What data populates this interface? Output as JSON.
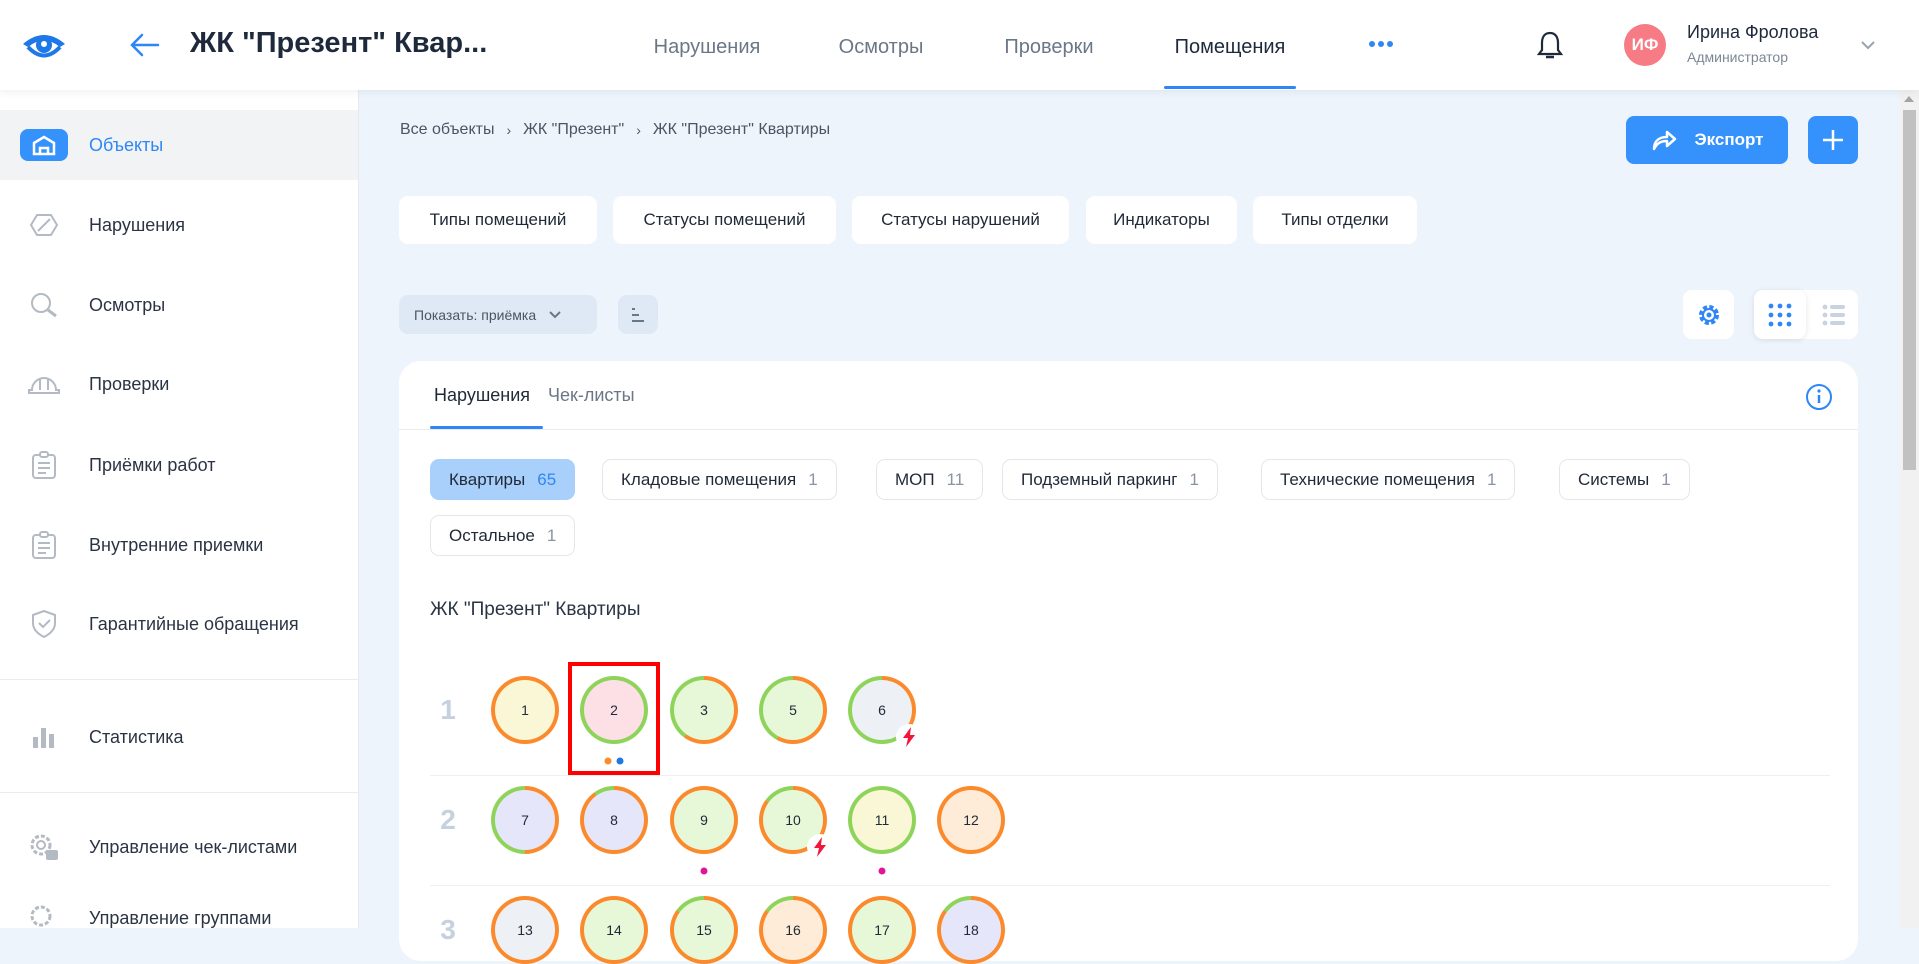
{
  "header": {
    "title": "ЖК \"Презент\" Квар...",
    "nav": [
      {
        "label": "Нарушения"
      },
      {
        "label": "Осмотры"
      },
      {
        "label": "Проверки"
      },
      {
        "label": "Помещения",
        "active": true
      }
    ],
    "more_icon": "more-dots-icon",
    "user": {
      "initials": "ИФ",
      "name": "Ирина Фролова",
      "role": "Администратор"
    }
  },
  "sidebar": {
    "items": [
      {
        "label": "Объекты",
        "icon": "building-icon",
        "active": true
      },
      {
        "label": "Нарушения",
        "icon": "violation-icon"
      },
      {
        "label": "Осмотры",
        "icon": "search-icon"
      },
      {
        "label": "Проверки",
        "icon": "helmet-icon"
      },
      {
        "label": "Приёмки работ",
        "icon": "clipboard-icon"
      },
      {
        "label": "Внутренние приемки",
        "icon": "clipboard-icon"
      },
      {
        "label": "Гарантийные обращения",
        "icon": "shield-check-icon"
      },
      {
        "label": "Статистика",
        "icon": "bar-chart-icon"
      },
      {
        "label": "Управление чек-листами",
        "icon": "gear-check-icon"
      },
      {
        "label": "Управление группами",
        "icon": "gear-group-icon"
      }
    ]
  },
  "breadcrumb": [
    "Все объекты",
    "ЖК \"Презент\"",
    "ЖК \"Презент\" Квартиры"
  ],
  "actions": {
    "export_label": "Экспорт"
  },
  "filters": [
    "Типы помещений",
    "Статусы помещений",
    "Статусы нарушений",
    "Индикаторы",
    "Типы отделки"
  ],
  "show_dropdown": "Показать: приёмка",
  "card": {
    "tabs": [
      {
        "label": "Нарушения",
        "active": true
      },
      {
        "label": "Чек-листы"
      }
    ],
    "categories": [
      {
        "label": "Квартиры",
        "count": "65",
        "active": true
      },
      {
        "label": "Кладовые помещения",
        "count": "1"
      },
      {
        "label": "МОП",
        "count": "11"
      },
      {
        "label": "Подземный паркинг",
        "count": "1"
      },
      {
        "label": "Технические помещения",
        "count": "1"
      },
      {
        "label": "Системы",
        "count": "1"
      },
      {
        "label": "Остальное",
        "count": "1"
      }
    ],
    "section_title": "ЖК \"Презент\" Квартиры",
    "floors": [
      {
        "label": "1",
        "rooms": [
          {
            "n": "1",
            "fill": "#f9f7d6",
            "orange": 1
          },
          {
            "n": "2",
            "fill": "#fde0e6",
            "orange": 0,
            "selected": true,
            "dots": [
              "#fb8a2c",
              "#1f78e8"
            ]
          },
          {
            "n": "3",
            "fill": "#e6f8d8",
            "orange": 0.6
          },
          {
            "n": "5",
            "fill": "#e6f8d8",
            "orange": 0.58
          },
          {
            "n": "6",
            "fill": "#edf1f5",
            "orange": 0.35,
            "bolt": true
          }
        ]
      },
      {
        "label": "2",
        "rooms": [
          {
            "n": "7",
            "fill": "#e6e6fb",
            "orange": 0.5
          },
          {
            "n": "8",
            "fill": "#e6e6fb",
            "orange": 0.9
          },
          {
            "n": "9",
            "fill": "#e6f8d8",
            "orange": 1,
            "dots": [
              "#e0169a"
            ]
          },
          {
            "n": "10",
            "fill": "#e6f8d8",
            "orange": 0.85,
            "bolt": true
          },
          {
            "n": "11",
            "fill": "#f9f7d6",
            "orange": 0,
            "dots": [
              "#e0169a"
            ]
          },
          {
            "n": "12",
            "fill": "#feecd8",
            "orange": 1
          }
        ]
      },
      {
        "label": "3",
        "rooms": [
          {
            "n": "13",
            "fill": "#edf1f5",
            "orange": 1
          },
          {
            "n": "14",
            "fill": "#e6f8d8",
            "orange": 1
          },
          {
            "n": "15",
            "fill": "#e6f8d8",
            "orange": 0.85
          },
          {
            "n": "16",
            "fill": "#feecd8",
            "orange": 0.85
          },
          {
            "n": "17",
            "fill": "#e6f8d8",
            "orange": 1
          },
          {
            "n": "18",
            "fill": "#e6e6fb",
            "orange": 0.85
          }
        ]
      }
    ]
  },
  "colors": {
    "accent": "#3591fb",
    "orange": "#fb8a2c",
    "green": "#8fd45a",
    "selection": "#ff0000"
  }
}
